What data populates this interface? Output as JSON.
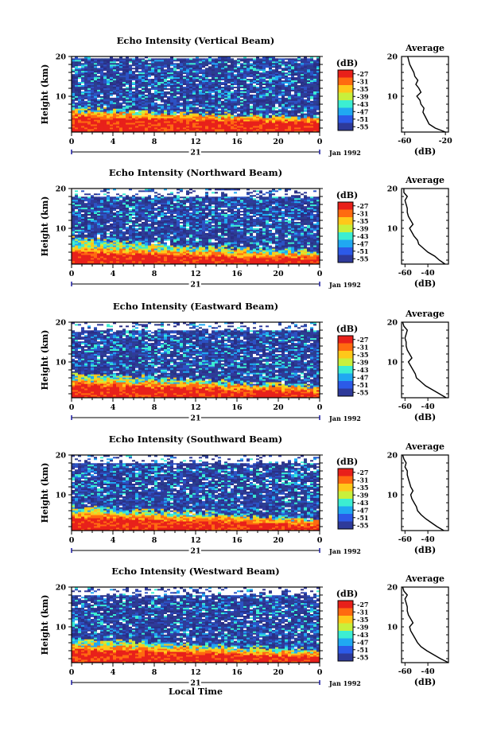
{
  "chart_data": [
    {
      "type": "heatmap",
      "title": "Echo Intensity (Vertical Beam)",
      "ylabel": "Height (km)",
      "x_ticks": [
        "0",
        "4",
        "8",
        "12",
        "16",
        "20",
        "0"
      ],
      "y_ticks": [
        "20",
        "10"
      ],
      "xlim": [
        0,
        24
      ],
      "ylim": [
        1,
        20
      ],
      "date_day": "21",
      "date_label": "Jan 1992",
      "colorbar": {
        "unit": "(dB)",
        "levels": [
          "-27",
          "-31",
          "-35",
          "-39",
          "-43",
          "-47",
          "-51",
          "-55"
        ]
      },
      "layers": {
        "red_top_start": 5,
        "red_top_end": 3.5,
        "cyan_top_start": 7,
        "cyan_top_end": 4.5,
        "blank_above": 19.5
      },
      "avg_profile": {
        "title": "Average",
        "xlabel": "(dB)",
        "xticks": [
          "-60",
          "-20"
        ],
        "xlim": [
          -63,
          -17
        ],
        "y_ticks": [
          "20",
          "10"
        ],
        "heights": [
          1,
          2,
          3,
          4,
          5,
          6,
          7,
          8,
          9,
          10,
          11,
          12,
          13,
          14,
          15,
          16,
          17,
          18,
          19,
          20
        ],
        "values": [
          -20,
          -30,
          -36,
          -38,
          -40,
          -42,
          -41,
          -44,
          -45,
          -48,
          -44,
          -46,
          -49,
          -47,
          -50,
          -51,
          -53,
          -55,
          -56,
          -57
        ]
      }
    },
    {
      "type": "heatmap",
      "title": "Echo Intensity (Northward Beam)",
      "ylabel": "Height (km)",
      "x_ticks": [
        "0",
        "4",
        "8",
        "12",
        "16",
        "20",
        "0"
      ],
      "y_ticks": [
        "20",
        "10"
      ],
      "xlim": [
        0,
        24
      ],
      "ylim": [
        1,
        20
      ],
      "date_day": "21",
      "date_label": "Jan 1992",
      "colorbar": {
        "unit": "(dB)",
        "levels": [
          "-27",
          "-31",
          "-35",
          "-39",
          "-43",
          "-47",
          "-51",
          "-55"
        ]
      },
      "layers": {
        "red_top_start": 4,
        "red_top_end": 2.5,
        "cyan_top_start": 7.5,
        "cyan_top_end": 4,
        "blank_above": 18
      },
      "avg_profile": {
        "title": "Average",
        "xlabel": "(dB)",
        "xticks": [
          "-60",
          "-40"
        ],
        "xlim": [
          -63,
          -22
        ],
        "y_ticks": [
          "20",
          "10"
        ],
        "heights": [
          1,
          2,
          3,
          4,
          5,
          6,
          7,
          8,
          9,
          10,
          11,
          12,
          13,
          14,
          15,
          16,
          17,
          18,
          19,
          20
        ],
        "values": [
          -25,
          -30,
          -34,
          -40,
          -44,
          -48,
          -49,
          -52,
          -54,
          -56,
          -53,
          -55,
          -57,
          -58,
          -58,
          -59,
          -60,
          -58,
          -61,
          -61
        ]
      }
    },
    {
      "type": "heatmap",
      "title": "Echo Intensity (Eastward Beam)",
      "ylabel": "Height (km)",
      "x_ticks": [
        "0",
        "4",
        "8",
        "12",
        "16",
        "20",
        "0"
      ],
      "y_ticks": [
        "20",
        "10"
      ],
      "xlim": [
        0,
        24
      ],
      "ylim": [
        1,
        20
      ],
      "date_day": "21",
      "date_label": "Jan 1992",
      "colorbar": {
        "unit": "(dB)",
        "levels": [
          "-27",
          "-31",
          "-35",
          "-39",
          "-43",
          "-47",
          "-51",
          "-55"
        ]
      },
      "layers": {
        "red_top_start": 4.5,
        "red_top_end": 2.5,
        "cyan_top_start": 7,
        "cyan_top_end": 4,
        "blank_above": 18
      },
      "avg_profile": {
        "title": "Average",
        "xlabel": "(dB)",
        "xticks": [
          "-60",
          "-40"
        ],
        "xlim": [
          -63,
          -22
        ],
        "y_ticks": [
          "20",
          "10"
        ],
        "heights": [
          1,
          2,
          3,
          4,
          5,
          6,
          7,
          8,
          9,
          10,
          11,
          12,
          13,
          14,
          15,
          16,
          17,
          18,
          19,
          20
        ],
        "values": [
          -24,
          -30,
          -36,
          -42,
          -46,
          -50,
          -51,
          -53,
          -55,
          -57,
          -54,
          -56,
          -58,
          -59,
          -59,
          -60,
          -59,
          -58,
          -61,
          -62
        ]
      }
    },
    {
      "type": "heatmap",
      "title": "Echo Intensity (Southward Beam)",
      "ylabel": "Height (km)",
      "x_ticks": [
        "0",
        "4",
        "8",
        "12",
        "16",
        "20",
        "0"
      ],
      "y_ticks": [
        "20",
        "10"
      ],
      "xlim": [
        0,
        24
      ],
      "ylim": [
        1,
        20
      ],
      "date_day": "21",
      "date_label": "Jan 1992",
      "colorbar": {
        "unit": "(dB)",
        "levels": [
          "-27",
          "-31",
          "-35",
          "-39",
          "-43",
          "-47",
          "-51",
          "-55"
        ]
      },
      "layers": {
        "red_top_start": 4.5,
        "red_top_end": 2.5,
        "cyan_top_start": 7,
        "cyan_top_end": 4,
        "blank_above": 18
      },
      "avg_profile": {
        "title": "Average",
        "xlabel": "(dB)",
        "xticks": [
          "-60",
          "-40"
        ],
        "xlim": [
          -63,
          -22
        ],
        "y_ticks": [
          "20",
          "10"
        ],
        "heights": [
          1,
          2,
          3,
          4,
          5,
          6,
          7,
          8,
          9,
          10,
          11,
          12,
          13,
          14,
          15,
          16,
          17,
          18,
          19,
          20
        ],
        "values": [
          -26,
          -32,
          -37,
          -42,
          -46,
          -49,
          -50,
          -52,
          -54,
          -55,
          -53,
          -55,
          -56,
          -57,
          -58,
          -58,
          -60,
          -59,
          -61,
          -62
        ]
      }
    },
    {
      "type": "heatmap",
      "title": "Echo Intensity (Westward Beam)",
      "ylabel": "Height (km)",
      "x_ticks": [
        "0",
        "4",
        "8",
        "12",
        "16",
        "20",
        "0"
      ],
      "y_ticks": [
        "20",
        "10"
      ],
      "xlim": [
        0,
        24
      ],
      "ylim": [
        1,
        20
      ],
      "date_day": "21",
      "date_label": "Jan 1992",
      "xlabel": "Local Time",
      "colorbar": {
        "unit": "(dB)",
        "levels": [
          "-27",
          "-31",
          "-35",
          "-39",
          "-43",
          "-47",
          "-51",
          "-55"
        ]
      },
      "layers": {
        "red_top_start": 4.5,
        "red_top_end": 2.5,
        "cyan_top_start": 7,
        "cyan_top_end": 4,
        "blank_above": 18
      },
      "avg_profile": {
        "title": "Average",
        "xlabel": "(dB)",
        "xticks": [
          "-60",
          "-40"
        ],
        "xlim": [
          -63,
          -22
        ],
        "y_ticks": [
          "20",
          "10"
        ],
        "heights": [
          1,
          2,
          3,
          4,
          5,
          6,
          7,
          8,
          9,
          10,
          11,
          12,
          13,
          14,
          15,
          16,
          17,
          18,
          19,
          20
        ],
        "values": [
          -22,
          -29,
          -35,
          -41,
          -46,
          -49,
          -51,
          -53,
          -55,
          -56,
          -53,
          -55,
          -57,
          -58,
          -58,
          -59,
          -60,
          -58,
          -61,
          -62
        ]
      }
    }
  ]
}
